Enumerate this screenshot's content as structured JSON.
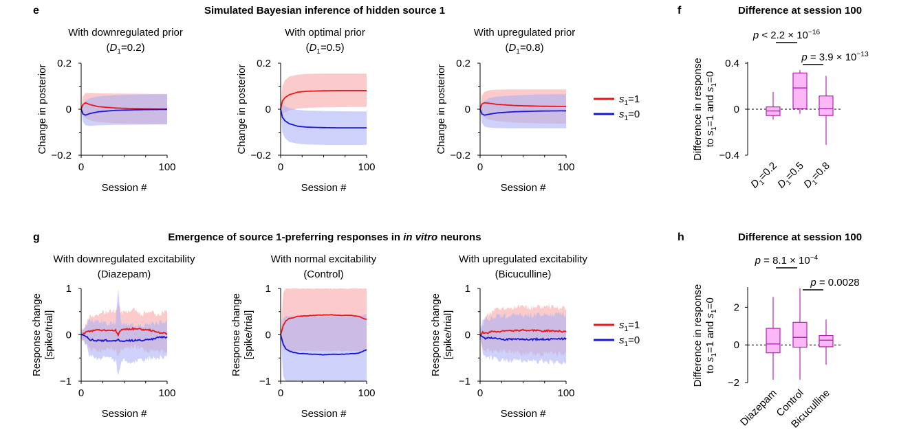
{
  "panels": {
    "e": {
      "letter": "e",
      "title": "Simulated Bayesian inference of hidden source 1"
    },
    "f": {
      "letter": "f",
      "title": "Difference at session 100"
    },
    "g": {
      "letter": "g",
      "title_pre": "Emergence of source 1-preferring responses in ",
      "title_em": "in vitro",
      "title_post": " neurons"
    },
    "h": {
      "letter": "h",
      "title": "Difference at session 100"
    }
  },
  "legend": {
    "s1_1": "=1",
    "s1_0": "=0",
    "s_letter": "s",
    "s_sub": "1"
  },
  "colors": {
    "red": "#e8161b",
    "blue": "#1616d6",
    "red_band": "#f7a8a6",
    "blue_band": "#aeb3f5",
    "overlap": "#c89fc8",
    "box_fill": "#fbb7f6",
    "box_edge": "#b224b4"
  },
  "chart_data": [
    {
      "id": "e1",
      "type": "line",
      "title": "With downregulated prior",
      "param": "=0.2",
      "param_var": "D",
      "param_sub": "1",
      "xlabel": "Session #",
      "ylabel": "Change in posterior",
      "xlim": [
        0,
        100
      ],
      "ylim": [
        -0.2,
        0.2
      ],
      "xticks": [
        0,
        100
      ],
      "yticks": [
        0.2,
        0,
        -0.2
      ],
      "yticklabels": [
        "0.2",
        "0",
        "−0.2"
      ],
      "series": [
        {
          "name": "s1=1",
          "x": [
            0,
            2,
            5,
            10,
            20,
            40,
            70,
            100
          ],
          "y": [
            0,
            0.02,
            0.028,
            0.02,
            0.011,
            0.005,
            0.002,
            0.001
          ],
          "band_upper": [
            0,
            0.055,
            0.07,
            0.071,
            0.069,
            0.068,
            0.067,
            0.066
          ],
          "band_lower": [
            0,
            -0.025,
            -0.038,
            -0.048,
            -0.056,
            -0.061,
            -0.064,
            -0.065
          ]
        },
        {
          "name": "s1=0",
          "x": [
            0,
            2,
            5,
            10,
            20,
            40,
            70,
            100
          ],
          "y": [
            0,
            -0.02,
            -0.026,
            -0.019,
            -0.011,
            -0.005,
            -0.002,
            -0.001
          ],
          "band_upper": [
            0,
            0.022,
            0.035,
            0.048,
            0.056,
            0.061,
            0.064,
            0.065
          ],
          "band_lower": [
            0,
            -0.055,
            -0.07,
            -0.072,
            -0.07,
            -0.068,
            -0.067,
            -0.066
          ]
        }
      ]
    },
    {
      "id": "e2",
      "type": "line",
      "title": "With optimal prior",
      "param": "=0.5",
      "param_var": "D",
      "param_sub": "1",
      "xlabel": "Session #",
      "ylabel": "Change in posterior",
      "xlim": [
        0,
        100
      ],
      "ylim": [
        -0.2,
        0.2
      ],
      "xticks": [
        0,
        100
      ],
      "yticks": [
        0.2,
        0,
        -0.2
      ],
      "yticklabels": [
        "0.2",
        "0",
        "−0.2"
      ],
      "series": [
        {
          "name": "s1=1",
          "x": [
            0,
            2,
            5,
            10,
            20,
            30,
            50,
            70,
            100
          ],
          "y": [
            0,
            0.035,
            0.05,
            0.063,
            0.074,
            0.078,
            0.08,
            0.081,
            0.081
          ],
          "band_upper": [
            0,
            0.1,
            0.125,
            0.142,
            0.15,
            0.153,
            0.155,
            0.155,
            0.155
          ],
          "band_lower": [
            0,
            -0.02,
            -0.015,
            -0.005,
            0.003,
            0.006,
            0.008,
            0.009,
            0.01
          ]
        },
        {
          "name": "s1=0",
          "x": [
            0,
            2,
            5,
            10,
            20,
            30,
            50,
            70,
            100
          ],
          "y": [
            0,
            -0.035,
            -0.05,
            -0.063,
            -0.074,
            -0.078,
            -0.08,
            -0.081,
            -0.081
          ],
          "band_upper": [
            0,
            0.02,
            0.015,
            0.005,
            -0.003,
            -0.006,
            -0.008,
            -0.009,
            -0.01
          ],
          "band_lower": [
            0,
            -0.1,
            -0.125,
            -0.142,
            -0.15,
            -0.153,
            -0.155,
            -0.155,
            -0.155
          ]
        }
      ]
    },
    {
      "id": "e3",
      "type": "line",
      "title": "With upregulated prior",
      "param": "=0.8",
      "param_var": "D",
      "param_sub": "1",
      "xlabel": "Session #",
      "ylabel": "Change in posterior",
      "xlim": [
        0,
        100
      ],
      "ylim": [
        -0.2,
        0.2
      ],
      "xticks": [
        0,
        100
      ],
      "yticks": [
        0.2,
        0,
        -0.2
      ],
      "yticklabels": [
        "0.2",
        "0",
        "−0.2"
      ],
      "series": [
        {
          "name": "s1=1",
          "x": [
            0,
            2,
            5,
            10,
            20,
            40,
            70,
            100
          ],
          "y": [
            0,
            0.022,
            0.028,
            0.026,
            0.021,
            0.016,
            0.013,
            0.012
          ],
          "band_upper": [
            0,
            0.06,
            0.075,
            0.082,
            0.085,
            0.086,
            0.086,
            0.086
          ],
          "band_lower": [
            0,
            -0.02,
            -0.035,
            -0.045,
            -0.052,
            -0.058,
            -0.062,
            -0.063
          ]
        },
        {
          "name": "s1=0",
          "x": [
            0,
            2,
            5,
            10,
            20,
            40,
            70,
            100
          ],
          "y": [
            0,
            -0.02,
            -0.026,
            -0.022,
            -0.016,
            -0.011,
            -0.008,
            -0.007
          ],
          "band_upper": [
            0,
            0.02,
            0.035,
            0.048,
            0.055,
            0.06,
            0.064,
            0.065
          ],
          "band_lower": [
            0,
            -0.06,
            -0.075,
            -0.08,
            -0.082,
            -0.083,
            -0.083,
            -0.083
          ]
        }
      ]
    },
    {
      "id": "f",
      "type": "box",
      "ylabel_line1": "Difference in response",
      "ylabel_line2": "to s1=1 and s1=0",
      "ylim": [
        -0.4,
        0.4
      ],
      "yticks": [
        0.4,
        0,
        -0.4
      ],
      "yticklabels": [
        "0.4",
        "0",
        "−0.4"
      ],
      "categories": [
        "=0.2",
        "=0.5",
        "=0.8"
      ],
      "category_var": "D",
      "category_sub": "1",
      "boxes": [
        {
          "min": -0.09,
          "q1": -0.055,
          "median": -0.015,
          "q3": 0.02,
          "max": 0.15
        },
        {
          "min": -0.04,
          "q1": 0.005,
          "median": 0.185,
          "q3": 0.315,
          "max": 0.34
        },
        {
          "min": -0.31,
          "q1": -0.055,
          "median": 0.005,
          "q3": 0.115,
          "max": 0.29
        }
      ],
      "annotations": [
        {
          "text": "p < 2.2 × 10",
          "sup": "−16",
          "between": [
            1,
            2
          ]
        },
        {
          "text": "p = 3.9 × 10",
          "sup": "−13",
          "between": [
            2,
            3
          ]
        }
      ]
    },
    {
      "id": "g1",
      "type": "line",
      "title": "With downregulated excitability",
      "subtitle": "(Diazepam)",
      "xlabel": "Session #",
      "ylabel_line1": "Response change",
      "ylabel_line2": "[spike/trial]",
      "xlim": [
        0,
        100
      ],
      "ylim": [
        -1,
        1
      ],
      "xticks": [
        0,
        100
      ],
      "yticks": [
        1,
        0,
        -1
      ],
      "yticklabels": [
        "1",
        "0",
        "−1"
      ],
      "series": [
        {
          "name": "s1=1",
          "x": [
            0,
            5,
            10,
            20,
            30,
            40,
            43,
            46,
            50,
            60,
            70,
            80,
            90,
            100
          ],
          "y": [
            0,
            0.05,
            0.08,
            0.1,
            0.09,
            0.1,
            0.0,
            0.1,
            0.12,
            0.13,
            0.12,
            0.1,
            0.05,
            0.03
          ],
          "band_upper": [
            0.05,
            0.2,
            0.4,
            0.45,
            0.5,
            0.5,
            0.7,
            0.5,
            0.48,
            0.55,
            0.45,
            0.5,
            0.45,
            0.5
          ],
          "band_lower": [
            -0.05,
            -0.2,
            -0.3,
            -0.35,
            -0.3,
            -0.3,
            -0.5,
            -0.3,
            -0.3,
            -0.25,
            -0.3,
            -0.35,
            -0.35,
            -0.4
          ]
        },
        {
          "name": "s1=0",
          "x": [
            0,
            5,
            10,
            20,
            30,
            40,
            43,
            46,
            50,
            60,
            70,
            80,
            90,
            100
          ],
          "y": [
            0,
            -0.03,
            -0.1,
            -0.13,
            -0.12,
            -0.14,
            -0.1,
            -0.15,
            -0.13,
            -0.12,
            -0.12,
            -0.1,
            -0.06,
            -0.05
          ],
          "band_upper": [
            0.05,
            0.2,
            0.3,
            0.3,
            0.25,
            0.25,
            1.0,
            0.3,
            0.25,
            0.2,
            0.22,
            0.22,
            0.25,
            0.3
          ],
          "band_lower": [
            -0.05,
            -0.2,
            -0.45,
            -0.5,
            -0.5,
            -0.55,
            -0.9,
            -0.6,
            -0.55,
            -0.6,
            -0.55,
            -0.5,
            -0.5,
            -0.45
          ]
        }
      ]
    },
    {
      "id": "g2",
      "type": "line",
      "title": "With normal excitability",
      "subtitle": "(Control)",
      "xlabel": "Session #",
      "ylabel_line1": "Response change",
      "ylabel_line2": "[spike/trial]",
      "xlim": [
        0,
        100
      ],
      "ylim": [
        -1,
        1
      ],
      "xticks": [
        0,
        100
      ],
      "yticks": [
        1,
        0,
        -1
      ],
      "yticklabels": [
        "1",
        "0",
        "−1"
      ],
      "series": [
        {
          "name": "s1=1",
          "x": [
            0,
            3,
            6,
            10,
            15,
            20,
            30,
            40,
            50,
            60,
            70,
            80,
            90,
            100
          ],
          "y": [
            0,
            0.2,
            0.3,
            0.35,
            0.37,
            0.4,
            0.41,
            0.42,
            0.43,
            0.43,
            0.42,
            0.42,
            0.4,
            0.33
          ],
          "band_upper": [
            0.02,
            0.9,
            1.0,
            1.0,
            1.0,
            1.0,
            1.0,
            1.0,
            1.0,
            1.0,
            1.0,
            1.0,
            1.0,
            1.0
          ],
          "band_lower": [
            -0.02,
            -0.3,
            -0.35,
            -0.35,
            -0.35,
            -0.35,
            -0.35,
            -0.35,
            -0.35,
            -0.35,
            -0.35,
            -0.35,
            -0.35,
            -0.35
          ]
        },
        {
          "name": "s1=0",
          "x": [
            0,
            3,
            6,
            10,
            15,
            20,
            30,
            40,
            50,
            60,
            70,
            80,
            90,
            100
          ],
          "y": [
            0,
            -0.2,
            -0.3,
            -0.35,
            -0.38,
            -0.4,
            -0.41,
            -0.42,
            -0.43,
            -0.42,
            -0.42,
            -0.41,
            -0.4,
            -0.32
          ],
          "band_upper": [
            0.02,
            0.35,
            0.4,
            0.4,
            0.4,
            0.4,
            0.4,
            0.4,
            0.4,
            0.4,
            0.4,
            0.4,
            0.4,
            0.45
          ],
          "band_lower": [
            -0.02,
            -0.9,
            -1.0,
            -1.0,
            -1.0,
            -1.0,
            -1.0,
            -1.0,
            -1.0,
            -1.0,
            -1.0,
            -1.0,
            -1.0,
            -1.0
          ]
        }
      ]
    },
    {
      "id": "g3",
      "type": "line",
      "title": "With upregulated excitability",
      "subtitle": "(Bicuculline)",
      "xlabel": "Session #",
      "ylabel_line1": "Response change",
      "ylabel_line2": "[spike/trial]",
      "xlim": [
        0,
        100
      ],
      "ylim": [
        -1,
        1
      ],
      "xticks": [
        0,
        100
      ],
      "yticks": [
        1,
        0,
        -1
      ],
      "yticklabels": [
        "1",
        "0",
        "−1"
      ],
      "series": [
        {
          "name": "s1=1",
          "x": [
            0,
            3,
            6,
            10,
            15,
            20,
            30,
            40,
            50,
            60,
            70,
            80,
            90,
            100
          ],
          "y": [
            0,
            0.05,
            0.03,
            0.05,
            0.08,
            0.07,
            0.08,
            0.09,
            0.1,
            0.1,
            0.08,
            0.09,
            0.08,
            0.07
          ],
          "band_upper": [
            0.05,
            0.2,
            0.35,
            0.45,
            0.5,
            0.55,
            0.55,
            0.6,
            0.62,
            0.58,
            0.6,
            0.62,
            0.58,
            0.6
          ],
          "band_lower": [
            -0.05,
            -0.3,
            -0.35,
            -0.35,
            -0.35,
            -0.35,
            -0.35,
            -0.38,
            -0.4,
            -0.4,
            -0.4,
            -0.4,
            -0.42,
            -0.4
          ]
        },
        {
          "name": "s1=0",
          "x": [
            0,
            3,
            6,
            10,
            15,
            20,
            30,
            40,
            50,
            60,
            70,
            80,
            90,
            100
          ],
          "y": [
            0,
            -0.05,
            -0.08,
            -0.07,
            -0.06,
            -0.08,
            -0.1,
            -0.09,
            -0.1,
            -0.1,
            -0.09,
            -0.1,
            -0.09,
            -0.08
          ],
          "band_upper": [
            0.05,
            0.3,
            0.35,
            0.35,
            0.38,
            0.4,
            0.4,
            0.42,
            0.42,
            0.42,
            0.44,
            0.42,
            0.44,
            0.42
          ],
          "band_lower": [
            -0.05,
            -0.35,
            -0.45,
            -0.5,
            -0.5,
            -0.55,
            -0.55,
            -0.55,
            -0.56,
            -0.58,
            -0.56,
            -0.58,
            -0.6,
            -0.6
          ]
        }
      ]
    },
    {
      "id": "h",
      "type": "box",
      "ylabel_line1": "Difference in response",
      "ylabel_line2": "to s1=1 and s1=0",
      "ylim": [
        -2,
        3
      ],
      "yticks": [
        2,
        0,
        -2
      ],
      "yticklabels": [
        "2",
        "0",
        "−2"
      ],
      "categories": [
        "Diazepam",
        "Control",
        "Bicuculline"
      ],
      "boxes": [
        {
          "min": -1.85,
          "q1": -0.42,
          "median": 0.05,
          "q3": 0.88,
          "max": 2.55
        },
        {
          "min": -1.85,
          "q1": -0.12,
          "median": 0.4,
          "q3": 1.2,
          "max": 3.0
        },
        {
          "min": -1.05,
          "q1": -0.1,
          "median": 0.25,
          "q3": 0.5,
          "max": 1.35
        }
      ],
      "annotations": [
        {
          "text": "p = 8.1 × 10",
          "sup": "−4",
          "between": [
            1,
            2
          ]
        },
        {
          "text": "p = 0.0028",
          "sup": "",
          "between": [
            2,
            3
          ]
        }
      ]
    }
  ]
}
